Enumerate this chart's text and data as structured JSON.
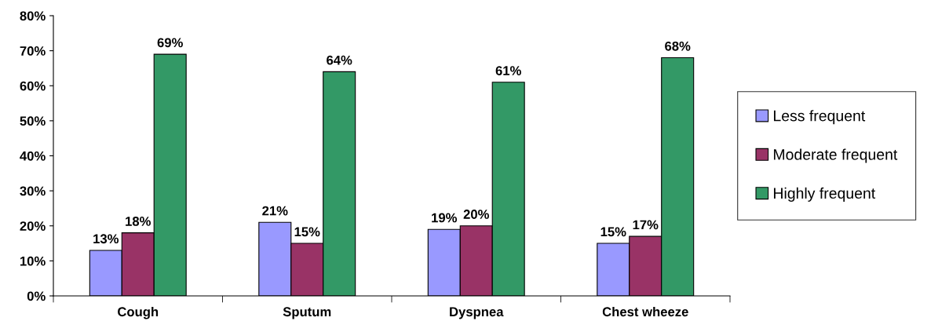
{
  "chart_data": {
    "type": "bar",
    "categories": [
      "Cough",
      "Sputum",
      "Dyspnea",
      "Chest wheeze"
    ],
    "series": [
      {
        "name": "Less frequent",
        "color": "#9999ff",
        "values": [
          13,
          21,
          19,
          15
        ],
        "value_labels": [
          "13%",
          "21%",
          "19%",
          "15%"
        ]
      },
      {
        "name": "Moderate frequent",
        "color": "#993366",
        "values": [
          18,
          15,
          20,
          17
        ],
        "value_labels": [
          "18%",
          "15%",
          "20%",
          "17%"
        ]
      },
      {
        "name": "Highly frequent",
        "color": "#339966",
        "values": [
          69,
          64,
          61,
          68
        ],
        "value_labels": [
          "69%",
          "64%",
          "61%",
          "68%"
        ]
      }
    ],
    "ylim": [
      0,
      80
    ],
    "yticks": [
      {
        "value": 0,
        "label": "0%"
      },
      {
        "value": 10,
        "label": "10%"
      },
      {
        "value": 20,
        "label": "20%"
      },
      {
        "value": 30,
        "label": "30%"
      },
      {
        "value": 40,
        "label": "40%"
      },
      {
        "value": 50,
        "label": "50%"
      },
      {
        "value": 60,
        "label": "60%"
      },
      {
        "value": 70,
        "label": "70%"
      },
      {
        "value": 80,
        "label": "80%"
      }
    ],
    "grid": false,
    "legend": "right"
  }
}
